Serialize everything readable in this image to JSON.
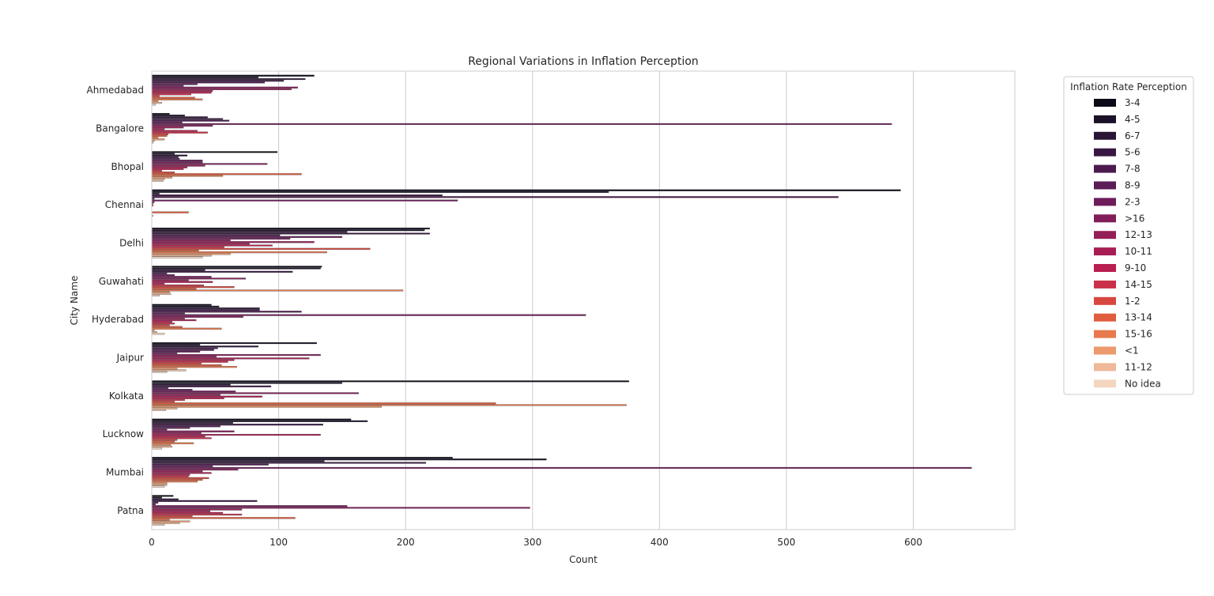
{
  "chart_data": {
    "type": "bar",
    "orientation": "horizontal",
    "title": "Regional Variations in Inflation Perception",
    "xlabel": "Count",
    "ylabel": "City Name",
    "xlim": [
      0,
      680
    ],
    "xticks": [
      0,
      100,
      200,
      300,
      400,
      500,
      600
    ],
    "grid": true,
    "legend_title": "Inflation Rate Perception",
    "legend_position": "outside-right",
    "categories": [
      "Ahmedabad",
      "Bangalore",
      "Bhopal",
      "Chennai",
      "Delhi",
      "Guwahati",
      "Hyderabad",
      "Jaipur",
      "Kolkata",
      "Lucknow",
      "Mumbai",
      "Patna"
    ],
    "series": [
      {
        "name": "3-4",
        "color": "#0d0a18",
        "values": [
          128,
          14,
          99,
          590,
          219,
          134,
          47,
          130,
          376,
          157,
          237,
          17
        ]
      },
      {
        "name": "4-5",
        "color": "#1b1229",
        "values": [
          84,
          26,
          18,
          360,
          215,
          133,
          53,
          38,
          150,
          170,
          311,
          8
        ]
      },
      {
        "name": "6-7",
        "color": "#2a1536",
        "values": [
          121,
          44,
          28,
          6,
          154,
          42,
          85,
          84,
          62,
          64,
          136,
          21
        ]
      },
      {
        "name": "5-6",
        "color": "#381842",
        "values": [
          104,
          56,
          21,
          229,
          219,
          111,
          85,
          52,
          94,
          135,
          216,
          83
        ]
      },
      {
        "name": "7-8",
        "color": "#4b1b4e",
        "values": [
          89,
          61,
          22,
          541,
          101,
          12,
          118,
          49,
          13,
          54,
          92,
          5
        ]
      },
      {
        "name": "8-9",
        "color": "#5c1c55",
        "values": [
          36,
          24,
          40,
          2,
          150,
          18,
          26,
          38,
          32,
          30,
          48,
          3
        ]
      },
      {
        "name": "2-3",
        "color": "#6e1d5a",
        "values": [
          25,
          583,
          40,
          241,
          109,
          47,
          342,
          20,
          66,
          12,
          646,
          154
        ]
      },
      {
        "name": ">16",
        "color": "#811e5a",
        "values": [
          115,
          48,
          91,
          2,
          62,
          74,
          72,
          133,
          163,
          65,
          68,
          298
        ]
      },
      {
        "name": "12-13",
        "color": "#941f58",
        "values": [
          110,
          25,
          42,
          1,
          128,
          29,
          26,
          51,
          54,
          39,
          40,
          71
        ]
      },
      {
        "name": "10-11",
        "color": "#a71e55",
        "values": [
          48,
          10,
          28,
          1,
          77,
          48,
          35,
          124,
          87,
          133,
          47,
          46
        ]
      },
      {
        "name": "9-10",
        "color": "#b91f51",
        "values": [
          47,
          36,
          25,
          0,
          95,
          10,
          16,
          65,
          57,
          42,
          30,
          56
        ]
      },
      {
        "name": "14-15",
        "color": "#ca2f49",
        "values": [
          31,
          44,
          8,
          0,
          57,
          41,
          18,
          60,
          26,
          47,
          29,
          71
        ]
      },
      {
        "name": "1-2",
        "color": "#d7473f",
        "values": [
          6,
          13,
          18,
          0,
          172,
          65,
          14,
          39,
          18,
          20,
          45,
          32
        ]
      },
      {
        "name": "13-14",
        "color": "#e05c3e",
        "values": [
          34,
          12,
          118,
          29,
          37,
          35,
          24,
          55,
          271,
          18,
          40,
          113
        ]
      },
      {
        "name": "15-16",
        "color": "#e8794e",
        "values": [
          40,
          5,
          56,
          0,
          138,
          198,
          55,
          67,
          374,
          33,
          36,
          14
        ]
      },
      {
        "name": "<1",
        "color": "#ec9a6e",
        "values": [
          5,
          10,
          16,
          1,
          62,
          14,
          2,
          20,
          181,
          15,
          12,
          30
        ]
      },
      {
        "name": "11-12",
        "color": "#efb898",
        "values": [
          8,
          2,
          10,
          0,
          47,
          15,
          4,
          27,
          20,
          16,
          12,
          22
        ]
      },
      {
        "name": "No idea",
        "color": "#f4d5c0",
        "values": [
          3,
          1,
          9,
          0,
          40,
          6,
          10,
          12,
          11,
          8,
          10,
          10
        ]
      }
    ]
  }
}
